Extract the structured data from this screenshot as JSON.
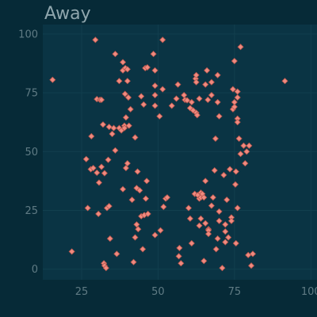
{
  "chart_data": {
    "type": "scatter",
    "title": "Away",
    "xlabel": "",
    "ylabel": "",
    "xlim": [
      12.3,
      102
    ],
    "ylim": [
      -4.5,
      104
    ],
    "x_ticks": [
      25,
      50,
      75,
      100
    ],
    "y_ticks": [
      0,
      25,
      50,
      75,
      100
    ],
    "grid": true,
    "colors": {
      "background": "#062a37",
      "panel": "#0a3444",
      "grid": "#123f4e",
      "point_fill": "#f08a7f",
      "point_stroke": "#b5554c",
      "text": "#8fa6ad"
    },
    "marker": "diamond",
    "points": [
      [
        15.5,
        80.5
      ],
      [
        21.8,
        7.5
      ],
      [
        26.5,
        46.8
      ],
      [
        27.0,
        26.0
      ],
      [
        28.0,
        42.5
      ],
      [
        28.2,
        56.5
      ],
      [
        28.8,
        43.0
      ],
      [
        29.5,
        97.5
      ],
      [
        30.0,
        41.0
      ],
      [
        30.0,
        72.3
      ],
      [
        30.5,
        23.5
      ],
      [
        30.7,
        36.8
      ],
      [
        31.0,
        72.0
      ],
      [
        31.5,
        43.5
      ],
      [
        31.5,
        72.0
      ],
      [
        32.0,
        61.5
      ],
      [
        32.3,
        2.5
      ],
      [
        32.5,
        1.5
      ],
      [
        32.5,
        40.8
      ],
      [
        33.0,
        0.5
      ],
      [
        33.3,
        26.0
      ],
      [
        33.7,
        46.5
      ],
      [
        34.0,
        60.5
      ],
      [
        34.0,
        26.8
      ],
      [
        34.3,
        13.0
      ],
      [
        35.0,
        57.5
      ],
      [
        35.5,
        60.0
      ],
      [
        36.0,
        91.5
      ],
      [
        36.0,
        50.5
      ],
      [
        36.5,
        6.5
      ],
      [
        37.3,
        80.0
      ],
      [
        37.3,
        60.0
      ],
      [
        38.0,
        59.0
      ],
      [
        38.5,
        34.0
      ],
      [
        38.5,
        84.5
      ],
      [
        38.5,
        88.0
      ],
      [
        39.0,
        61.0
      ],
      [
        39.0,
        60.0
      ],
      [
        39.2,
        74.5
      ],
      [
        39.3,
        85.5
      ],
      [
        39.5,
        64.5
      ],
      [
        39.5,
        43.0
      ],
      [
        40.0,
        45.0
      ],
      [
        40.0,
        85.0
      ],
      [
        40.0,
        80.0
      ],
      [
        40.3,
        73.0
      ],
      [
        40.5,
        61.0
      ],
      [
        41.0,
        68.0
      ],
      [
        41.5,
        29.5
      ],
      [
        42.0,
        3.0
      ],
      [
        42.5,
        56.0
      ],
      [
        42.5,
        13.5
      ],
      [
        43.0,
        19.0
      ],
      [
        43.0,
        34.5
      ],
      [
        43.3,
        41.5
      ],
      [
        43.5,
        17.0
      ],
      [
        44.0,
        33.5
      ],
      [
        44.5,
        22.5
      ],
      [
        44.5,
        73.5
      ],
      [
        45.0,
        8.5
      ],
      [
        45.3,
        70.0
      ],
      [
        45.5,
        23.0
      ],
      [
        45.8,
        85.5
      ],
      [
        46.0,
        30.0
      ],
      [
        46.3,
        37.5
      ],
      [
        46.5,
        85.8
      ],
      [
        46.7,
        23.5
      ],
      [
        48.5,
        91.5
      ],
      [
        49.0,
        84.5
      ],
      [
        49.0,
        78.0
      ],
      [
        49.0,
        74.0
      ],
      [
        49.0,
        14.5
      ],
      [
        49.0,
        69.5
      ],
      [
        50.5,
        65.0
      ],
      [
        50.8,
        16.5
      ],
      [
        51.5,
        97.5
      ],
      [
        51.5,
        76.5
      ],
      [
        51.8,
        26.5
      ],
      [
        52.5,
        30.0
      ],
      [
        53.0,
        30.5
      ],
      [
        54.5,
        69.5
      ],
      [
        56.0,
        72.5
      ],
      [
        56.5,
        78.5
      ],
      [
        56.8,
        5.5
      ],
      [
        57.0,
        9.0
      ],
      [
        57.5,
        2.5
      ],
      [
        58.5,
        74.0
      ],
      [
        58.8,
        72.0
      ],
      [
        59.5,
        71.8
      ],
      [
        60.0,
        26.0
      ],
      [
        60.5,
        21.5
      ],
      [
        60.5,
        68.5
      ],
      [
        61.0,
        11.0
      ],
      [
        61.0,
        71.0
      ],
      [
        61.5,
        67.5
      ],
      [
        62.0,
        32.0
      ],
      [
        62.3,
        81.0
      ],
      [
        62.5,
        82.5
      ],
      [
        62.5,
        79.5
      ],
      [
        62.5,
        66.5
      ],
      [
        62.8,
        65.5
      ],
      [
        63.0,
        31.5
      ],
      [
        63.5,
        72.5
      ],
      [
        63.5,
        18.5
      ],
      [
        63.5,
        30.0
      ],
      [
        64.0,
        32.5
      ],
      [
        64.0,
        21.5
      ],
      [
        64.0,
        30.5
      ],
      [
        64.5,
        32.0
      ],
      [
        65.0,
        3.5
      ],
      [
        65.0,
        30.5
      ],
      [
        65.5,
        37.5
      ],
      [
        65.5,
        19.5
      ],
      [
        65.5,
        78.5
      ],
      [
        66.0,
        84.5
      ],
      [
        66.3,
        72.0
      ],
      [
        66.5,
        17.0
      ],
      [
        66.5,
        16.5
      ],
      [
        66.5,
        15.0
      ],
      [
        67.5,
        27.0
      ],
      [
        67.5,
        74.0
      ],
      [
        67.5,
        79.5
      ],
      [
        68.0,
        30.5
      ],
      [
        68.5,
        42.0
      ],
      [
        68.8,
        55.5
      ],
      [
        69.0,
        8.5
      ],
      [
        69.5,
        13.0
      ],
      [
        69.5,
        82.5
      ],
      [
        69.5,
        71.0
      ],
      [
        70.0,
        65.0
      ],
      [
        70.0,
        24.5
      ],
      [
        70.0,
        20.5
      ],
      [
        71.0,
        0.5
      ],
      [
        71.5,
        40.0
      ],
      [
        72.0,
        11.5
      ],
      [
        72.0,
        16.0
      ],
      [
        72.0,
        19.0
      ],
      [
        72.5,
        29.5
      ],
      [
        73.0,
        13.5
      ],
      [
        73.5,
        42.5
      ],
      [
        74.0,
        22.0
      ],
      [
        74.0,
        20.5
      ],
      [
        74.5,
        76.5
      ],
      [
        74.5,
        68.0
      ],
      [
        75.0,
        69.0
      ],
      [
        75.0,
        71.0
      ],
      [
        75.0,
        88.5
      ],
      [
        75.3,
        36.0
      ],
      [
        75.5,
        41.5
      ],
      [
        75.5,
        11.0
      ],
      [
        76.0,
        73.0
      ],
      [
        76.0,
        75.5
      ],
      [
        76.0,
        26.0
      ],
      [
        76.0,
        64.0
      ],
      [
        76.0,
        62.5
      ],
      [
        76.5,
        55.5
      ],
      [
        77.0,
        94.5
      ],
      [
        77.0,
        49.0
      ],
      [
        78.0,
        52.5
      ],
      [
        78.5,
        45.0
      ],
      [
        79.0,
        50.0
      ],
      [
        79.5,
        6.0
      ],
      [
        79.8,
        52.5
      ],
      [
        80.5,
        1.5
      ],
      [
        81.0,
        6.5
      ],
      [
        91.5,
        80.0
      ]
    ]
  }
}
